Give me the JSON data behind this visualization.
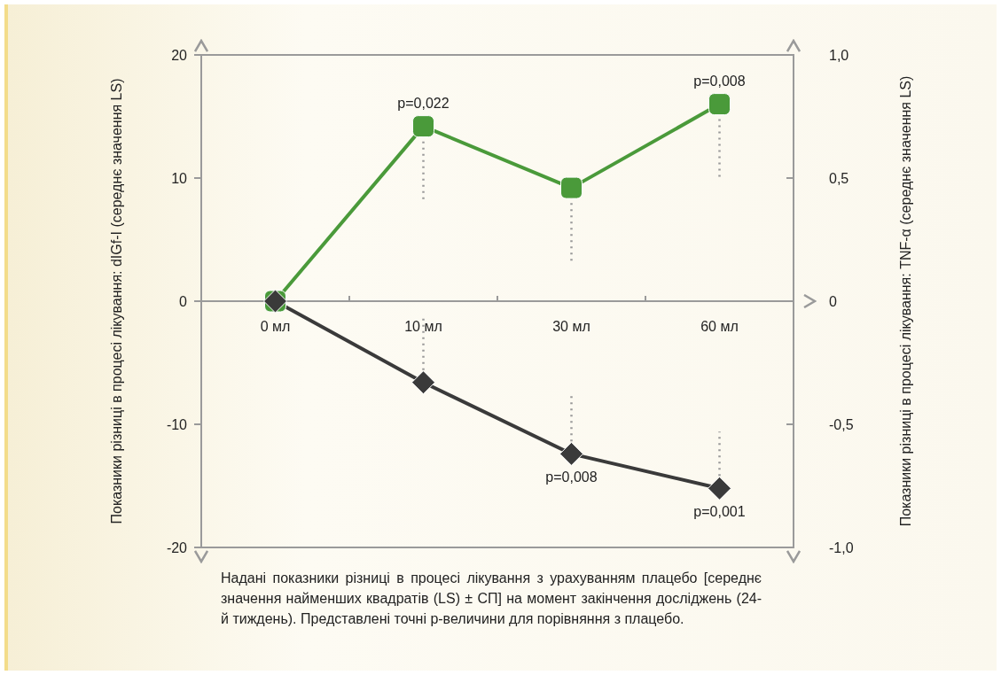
{
  "chart_data": {
    "type": "line",
    "categories": [
      "0 мл",
      "10 мл",
      "30 мл",
      "60 мл"
    ],
    "ylabel": "Показники різниці в процесі лікування: dIGf-I (середнє значення LS)",
    "y2label": "Показники різниці в процесі лікування: TNF-α (середнє значення LS)",
    "ylim": [
      -20,
      20
    ],
    "yticks": [
      -20,
      -10,
      0,
      10,
      20
    ],
    "y2lim": [
      -1,
      1
    ],
    "y2ticks": [
      {
        "value": -1,
        "label": "-1,0"
      },
      {
        "value": -0.5,
        "label": "-0,5"
      },
      0,
      {
        "value": 0.5,
        "label": "0,5"
      },
      {
        "value": 1,
        "label": "1,0"
      }
    ],
    "series": [
      {
        "color": "#4a9a3a",
        "marker": "square",
        "values": [
          0,
          14.2,
          9.2,
          16.0
        ],
        "errors": [
          null,
          [
            8.3,
            14.2
          ],
          [
            3.3,
            9.2
          ],
          [
            10.1,
            16.0
          ]
        ]
      },
      {
        "color": "#3a3a3a",
        "marker": "diamond",
        "axis": "y2",
        "values": [
          0,
          -0.33,
          -0.62,
          -0.76
        ],
        "errors": [
          null,
          [
            -0.33,
            -0.07
          ],
          [
            -0.62,
            -0.38
          ],
          [
            -0.76,
            -0.53
          ]
        ]
      }
    ],
    "annotations": [
      {
        "text": "p=0,022",
        "x": "10 мл",
        "y": 14.2
      },
      {
        "text": "p=0,008",
        "x": "60 мл",
        "y": 16.0
      },
      {
        "text": "p=0,008",
        "x": "30 мл",
        "y": -12.4
      },
      {
        "text": "p=0,001",
        "x": "60 мл",
        "y": -15.2
      },
      "Надані показники різниці в процесі лікування з урахуванням плацебо [середнє значення найменших квадратів (LS) ± СП] на момент закінчення досліджень (24-й тиждень). Представлені точні p-величини для порівняння з плацебо."
    ],
    "grid": false,
    "line_style": "solid"
  }
}
